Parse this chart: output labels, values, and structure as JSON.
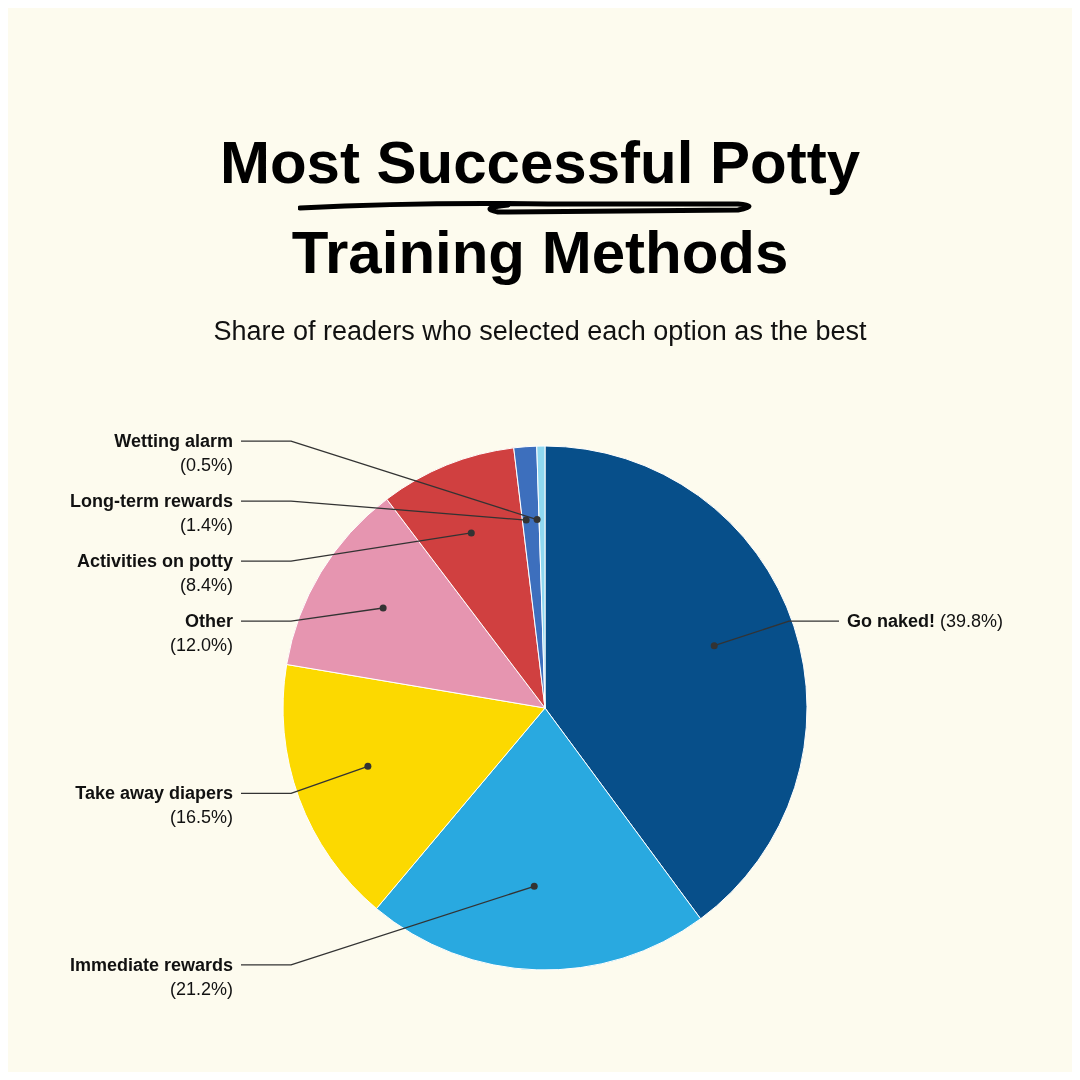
{
  "chart_data": {
    "type": "pie",
    "title": "Most Successful Potty Training Methods",
    "subtitle": "Share of readers who selected each option as the best",
    "categories": [
      "Go naked!",
      "Immediate rewards",
      "Take away diapers",
      "Other",
      "Activities on potty",
      "Long-term rewards",
      "Wetting alarm"
    ],
    "values": [
      39.8,
      21.2,
      16.5,
      12.0,
      8.4,
      1.4,
      0.5
    ],
    "colors": [
      "#074f8a",
      "#29a9e0",
      "#fcd900",
      "#e695b0",
      "#d04040",
      "#3d6fbd",
      "#8fd8f0"
    ],
    "value_labels": [
      "(39.8%)",
      "(21.2%)",
      "(16.5%)",
      "(12.0%)",
      "(8.4%)",
      "(1.4%)",
      "(0.5%)"
    ]
  }
}
